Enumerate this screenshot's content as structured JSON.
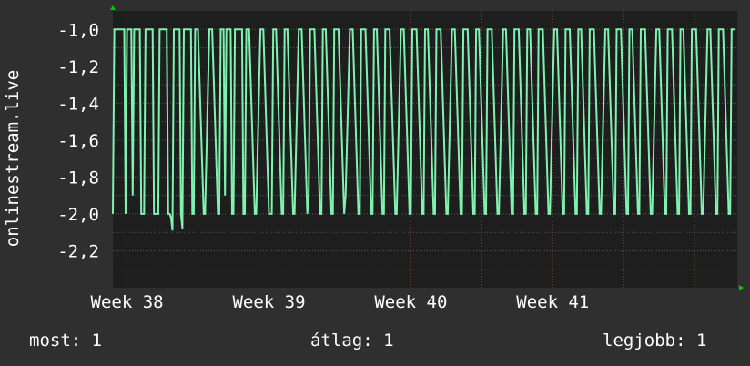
{
  "colors": {
    "background": "#2f2f2f",
    "plot_background": "#1e1e1e",
    "grid": "#555555",
    "grid_minor": "#7a3b3b",
    "line": "#7ff2b0",
    "axis_arrow": "#00cc00",
    "text": "#ffffff"
  },
  "chart_data": {
    "type": "line",
    "ylabel": "onlinestream.live",
    "ylim": [
      -2.4,
      -0.9
    ],
    "y_ticks": [
      -1.0,
      -1.2,
      -1.4,
      -1.6,
      -1.8,
      -2.0,
      -2.2
    ],
    "y_tick_labels": [
      "-1,0",
      "-1,2",
      "-1,4",
      "-1,6",
      "-1,8",
      "-2,0",
      "-2,2"
    ],
    "x_range": [
      37.9,
      42.3
    ],
    "x_ticks": [
      38,
      39,
      40,
      41
    ],
    "x_tick_labels": [
      "Week 38",
      "Week 39",
      "Week 40",
      "Week 41"
    ],
    "grid": true,
    "series": [
      {
        "x": [
          37.9,
          37.91,
          37.92,
          37.93,
          37.94,
          37.98,
          37.99,
          38.0,
          38.03,
          38.04,
          38.05,
          38.09,
          38.1,
          38.11,
          38.12,
          38.13,
          38.14,
          38.18,
          38.19,
          38.22,
          38.23,
          38.24,
          38.28,
          38.29,
          38.3,
          38.31,
          38.32,
          38.33,
          38.34,
          38.37,
          38.38,
          38.39,
          38.4,
          38.41,
          38.45,
          38.46,
          38.47,
          38.48,
          38.49,
          38.5,
          38.54,
          38.55,
          38.58,
          38.59,
          38.6,
          38.64,
          38.65,
          38.66,
          38.67,
          38.68,
          38.69,
          38.7,
          38.73,
          38.74,
          38.75,
          38.76,
          38.77,
          38.81,
          38.82,
          38.83,
          38.84,
          38.85,
          38.86,
          38.9,
          38.91,
          38.94,
          38.95,
          38.96,
          39.0,
          39.01,
          39.02,
          39.03,
          39.04,
          39.05,
          39.09,
          39.1,
          39.11,
          39.12,
          39.13,
          39.17,
          39.18,
          39.21,
          39.22,
          39.23,
          39.27,
          39.28,
          39.29,
          39.3,
          39.31,
          39.32,
          39.36,
          39.37,
          39.38,
          39.39,
          39.4,
          39.44,
          39.45,
          39.46,
          39.47,
          39.48,
          39.49,
          39.53,
          39.54,
          39.57,
          39.58,
          39.59,
          39.63,
          39.64,
          39.65,
          39.66,
          39.67,
          39.68,
          39.72,
          39.73,
          39.74,
          39.75,
          39.76,
          39.8,
          39.81,
          39.82,
          39.83,
          39.84,
          39.85,
          39.89,
          39.9,
          39.93,
          39.94,
          39.95,
          39.99,
          40.0,
          40.01,
          40.02,
          40.03,
          40.04,
          40.08,
          40.09,
          40.1,
          40.11,
          40.12,
          40.16,
          40.17,
          40.18,
          40.19,
          40.2,
          40.21,
          40.25,
          40.26,
          40.29,
          40.3,
          40.31,
          40.35,
          40.36,
          40.37,
          40.38,
          40.39,
          40.4,
          40.44,
          40.45,
          40.46,
          40.47,
          40.48,
          40.52,
          40.53,
          40.54,
          40.55,
          40.56,
          40.57,
          40.61,
          40.62,
          40.65,
          40.66,
          40.67,
          40.71,
          40.72,
          40.73,
          40.74,
          40.75,
          40.76,
          40.8,
          40.81,
          40.82,
          40.83,
          40.84,
          40.88,
          40.89,
          40.9,
          40.91,
          40.92,
          40.93,
          40.97,
          40.98,
          41.01,
          41.02,
          41.03,
          41.07,
          41.08,
          41.09,
          41.1,
          41.11,
          41.12,
          41.16,
          41.17,
          41.18,
          41.19,
          41.2,
          41.24,
          41.25,
          41.26,
          41.27,
          41.28,
          41.29,
          41.33,
          41.34,
          41.37,
          41.38,
          41.39,
          41.43,
          41.44,
          41.45,
          41.46,
          41.47,
          41.48,
          41.52,
          41.53,
          41.54,
          41.55,
          41.56,
          41.6,
          41.61,
          41.62,
          41.63,
          41.64,
          41.65,
          41.69,
          41.7,
          41.73,
          41.74,
          41.75,
          41.79,
          41.8,
          41.81,
          41.82,
          41.83,
          41.84,
          41.88,
          41.89,
          41.9,
          41.91,
          41.92,
          41.96,
          41.97,
          41.98,
          41.99,
          42.0,
          42.01,
          42.05,
          42.06,
          42.09,
          42.1,
          42.11,
          42.15,
          42.16,
          42.17,
          42.18,
          42.19,
          42.2,
          42.24,
          42.25,
          42.26,
          42.27,
          42.28
        ],
        "y": [
          -2.0,
          -1.0,
          -1.0,
          -1.0,
          -1.0,
          -1.0,
          -2.0,
          -1.0,
          -1.0,
          -1.9,
          -1.0,
          -1.0,
          -2.0,
          -2.0,
          -2.0,
          -1.0,
          -1.0,
          -1.0,
          -2.0,
          -2.0,
          -1.0,
          -1.0,
          -1.0,
          -2.0,
          -2.0,
          -2.02,
          -2.09,
          -1.0,
          -1.0,
          -1.0,
          -2.0,
          -2.08,
          -1.0,
          -1.0,
          -1.0,
          -2.0,
          -2.0,
          -1.0,
          -1.0,
          -1.0,
          -2.0,
          -2.0,
          -1.0,
          -1.0,
          -1.0,
          -2.0,
          -2.0,
          -1.0,
          -1.0,
          -1.0,
          -1.9,
          -1.0,
          -1.0,
          -2.0,
          -2.0,
          -1.0,
          -1.0,
          -1.0,
          -2.0,
          -2.0,
          -1.0,
          -1.0,
          -1.0,
          -2.0,
          -2.0,
          -1.0,
          -1.0,
          -1.0,
          -2.0,
          -2.0,
          -2.0,
          -1.0,
          -1.0,
          -1.0,
          -2.0,
          -2.0,
          -1.0,
          -1.0,
          -1.0,
          -2.0,
          -2.0,
          -1.0,
          -1.0,
          -1.0,
          -2.0,
          -1.9,
          -1.0,
          -1.0,
          -1.0,
          -1.0,
          -2.0,
          -2.0,
          -1.0,
          -1.0,
          -1.0,
          -2.0,
          -2.0,
          -1.0,
          -1.0,
          -1.0,
          -1.0,
          -2.0,
          -1.9,
          -1.0,
          -1.0,
          -1.0,
          -2.0,
          -2.0,
          -1.0,
          -1.0,
          -1.0,
          -1.0,
          -2.0,
          -2.0,
          -1.0,
          -1.0,
          -1.0,
          -2.0,
          -2.0,
          -1.0,
          -1.0,
          -1.0,
          -1.0,
          -2.0,
          -2.0,
          -1.0,
          -1.0,
          -1.0,
          -2.0,
          -2.0,
          -1.0,
          -1.0,
          -1.0,
          -1.0,
          -2.0,
          -2.0,
          -1.0,
          -1.0,
          -1.0,
          -2.0,
          -2.0,
          -1.0,
          -1.0,
          -1.0,
          -1.0,
          -2.0,
          -2.0,
          -1.0,
          -1.0,
          -1.0,
          -2.0,
          -2.0,
          -1.0,
          -1.0,
          -1.0,
          -1.0,
          -2.0,
          -2.0,
          -1.0,
          -1.0,
          -1.0,
          -2.0,
          -2.0,
          -1.0,
          -1.0,
          -1.0,
          -1.0,
          -2.0,
          -2.0,
          -1.0,
          -1.0,
          -1.0,
          -2.0,
          -2.0,
          -1.0,
          -1.0,
          -1.0,
          -1.0,
          -2.0,
          -2.0,
          -1.0,
          -1.0,
          -1.0,
          -2.0,
          -2.0,
          -1.0,
          -1.0,
          -1.0,
          -1.0,
          -2.0,
          -2.0,
          -1.0,
          -1.0,
          -1.0,
          -2.0,
          -2.0,
          -1.0,
          -1.0,
          -1.0,
          -1.0,
          -2.0,
          -2.0,
          -1.0,
          -1.0,
          -1.0,
          -2.0,
          -2.0,
          -1.0,
          -1.0,
          -1.0,
          -1.0,
          -2.0,
          -2.0,
          -1.0,
          -1.0,
          -1.0,
          -2.0,
          -2.0,
          -1.0,
          -1.0,
          -1.0,
          -1.0,
          -2.0,
          -2.0,
          -1.0,
          -1.0,
          -1.0,
          -2.0,
          -2.0,
          -1.0,
          -1.0,
          -1.0,
          -1.0,
          -2.0,
          -2.0,
          -1.0,
          -1.0,
          -1.0,
          -2.0,
          -2.0,
          -1.0,
          -1.0,
          -1.0,
          -1.0,
          -2.0,
          -2.0,
          -1.0,
          -1.0,
          -1.0,
          -2.0,
          -2.0,
          -1.0,
          -1.0,
          -1.0,
          -1.0,
          -2.0,
          -2.0,
          -1.0,
          -1.0,
          -1.0,
          -2.0,
          -2.0,
          -1.0,
          -1.0,
          -1.0,
          -1.0,
          -2.0,
          -2.0,
          -1.0,
          -1.0,
          -1.0
        ]
      }
    ]
  },
  "stats": {
    "now": "most: 1",
    "avg": "átlag: 1",
    "max": "legjobb: 1"
  }
}
